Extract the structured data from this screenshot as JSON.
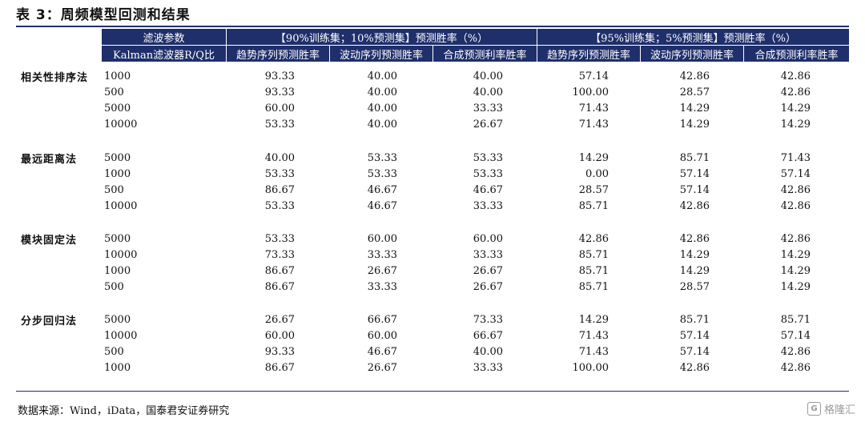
{
  "title": "表 3：周频模型回测和结果",
  "header": {
    "param_title": "滤波参数",
    "param_sub": "Kalman滤波器R/Q比",
    "group_90": "【90%训练集；10%预测集】预测胜率（%）",
    "group_95": "【95%训练集；5%预测集】预测胜率（%）",
    "columns": [
      "趋势序列预测胜率",
      "波动序列预测胜率",
      "合成预测利率胜率",
      "趋势序列预测胜率",
      "波动序列预测胜率",
      "合成预测利率胜率"
    ]
  },
  "groups": [
    {
      "name": "相关性排序法",
      "rows": [
        {
          "param": "1000",
          "v": [
            "93.33",
            "40.00",
            "40.00",
            "57.14",
            "42.86",
            "42.86"
          ]
        },
        {
          "param": "500",
          "v": [
            "93.33",
            "40.00",
            "40.00",
            "100.00",
            "28.57",
            "42.86"
          ]
        },
        {
          "param": "5000",
          "v": [
            "60.00",
            "40.00",
            "33.33",
            "71.43",
            "14.29",
            "14.29"
          ]
        },
        {
          "param": "10000",
          "v": [
            "53.33",
            "40.00",
            "26.67",
            "71.43",
            "14.29",
            "14.29"
          ]
        }
      ]
    },
    {
      "name": "最远距离法",
      "rows": [
        {
          "param": "5000",
          "v": [
            "40.00",
            "53.33",
            "53.33",
            "14.29",
            "85.71",
            "71.43"
          ]
        },
        {
          "param": "1000",
          "v": [
            "53.33",
            "53.33",
            "53.33",
            "0.00",
            "57.14",
            "57.14"
          ]
        },
        {
          "param": "500",
          "v": [
            "86.67",
            "46.67",
            "46.67",
            "28.57",
            "57.14",
            "42.86"
          ]
        },
        {
          "param": "10000",
          "v": [
            "53.33",
            "46.67",
            "33.33",
            "85.71",
            "42.86",
            "42.86"
          ]
        }
      ]
    },
    {
      "name": "模块固定法",
      "rows": [
        {
          "param": "5000",
          "v": [
            "53.33",
            "60.00",
            "60.00",
            "42.86",
            "42.86",
            "42.86"
          ]
        },
        {
          "param": "10000",
          "v": [
            "73.33",
            "33.33",
            "33.33",
            "85.71",
            "14.29",
            "14.29"
          ]
        },
        {
          "param": "1000",
          "v": [
            "86.67",
            "26.67",
            "26.67",
            "85.71",
            "14.29",
            "14.29"
          ]
        },
        {
          "param": "500",
          "v": [
            "86.67",
            "33.33",
            "26.67",
            "85.71",
            "28.57",
            "14.29"
          ]
        }
      ]
    },
    {
      "name": "分步回归法",
      "rows": [
        {
          "param": "5000",
          "v": [
            "26.67",
            "66.67",
            "73.33",
            "14.29",
            "85.71",
            "85.71"
          ]
        },
        {
          "param": "10000",
          "v": [
            "60.00",
            "60.00",
            "66.67",
            "71.43",
            "57.14",
            "57.14"
          ]
        },
        {
          "param": "500",
          "v": [
            "93.33",
            "46.67",
            "40.00",
            "71.43",
            "57.14",
            "42.86"
          ]
        },
        {
          "param": "1000",
          "v": [
            "86.67",
            "26.67",
            "33.33",
            "100.00",
            "42.86",
            "42.86"
          ]
        }
      ]
    }
  ],
  "source": "数据来源：Wind，iData，国泰君安证券研究",
  "watermark": {
    "logo": "G",
    "text": "格隆汇"
  },
  "colors": {
    "header_bg": "#1f2f6b",
    "header_text": "#ffffff"
  }
}
